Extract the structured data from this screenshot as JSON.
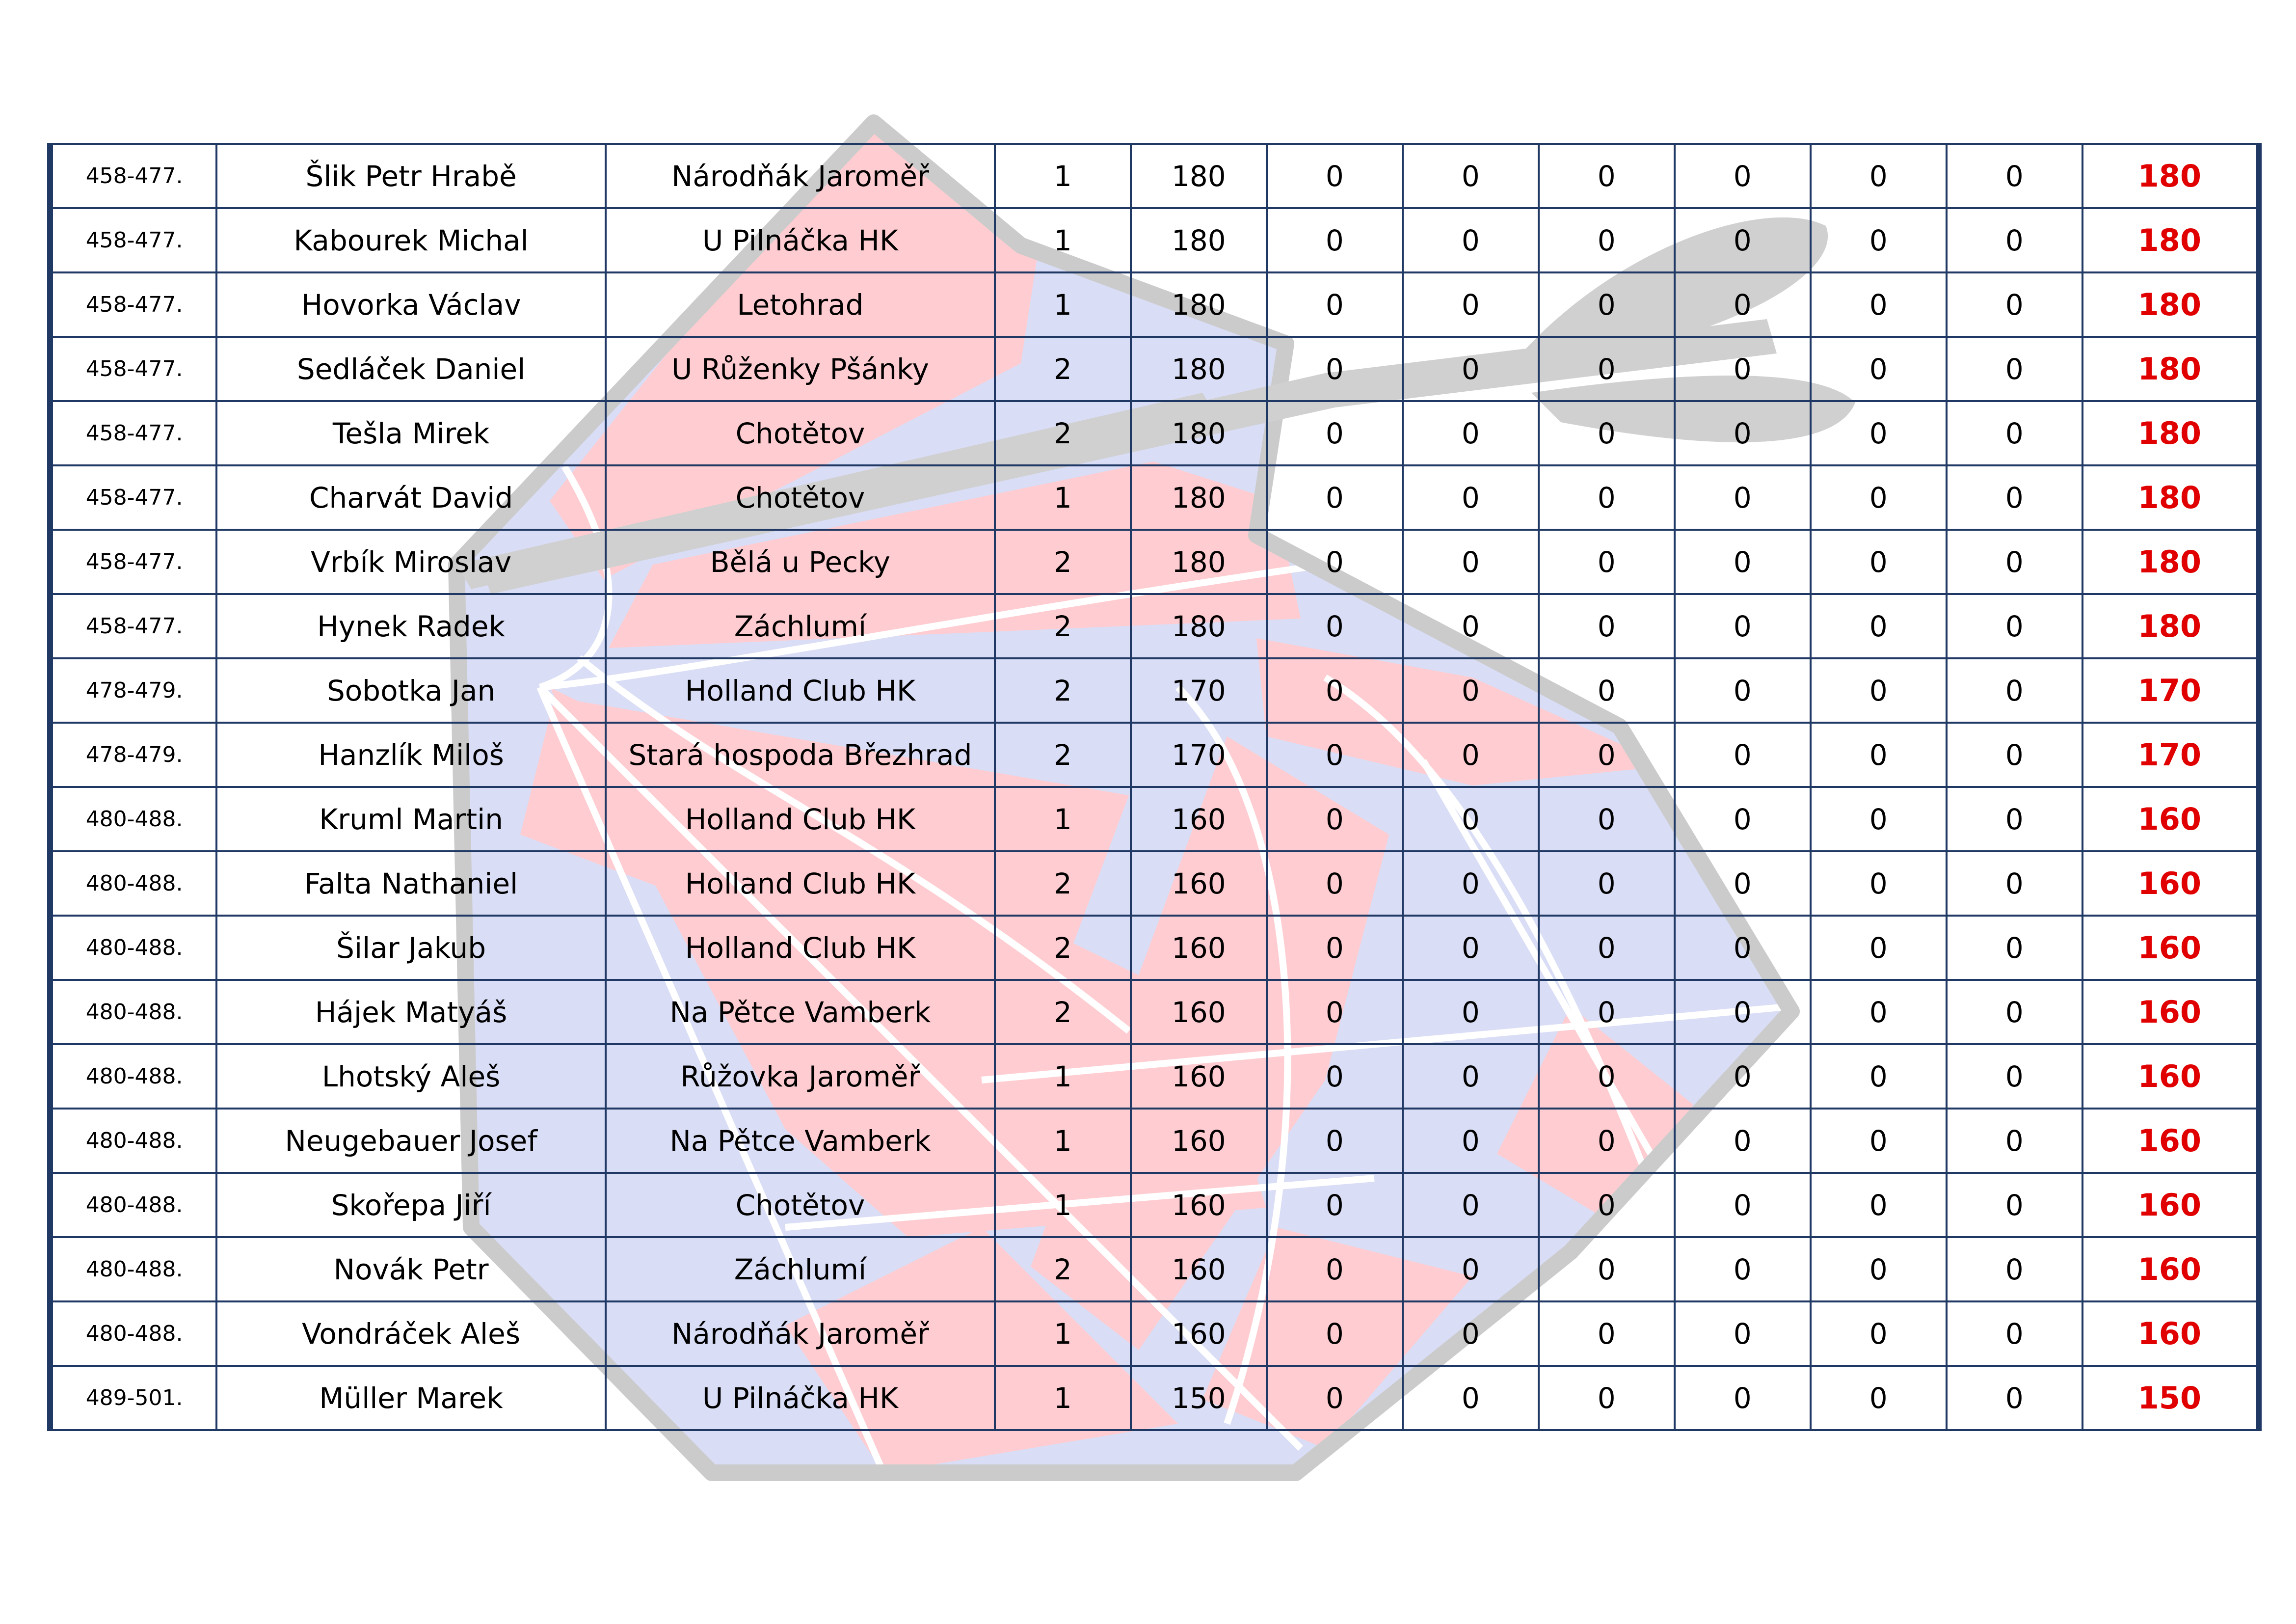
{
  "colors": {
    "border": "#1f3864",
    "total_text": "#e00000",
    "watermark_red": "#ffc8cc",
    "watermark_blue": "#d7dcf4",
    "watermark_outline": "#c8c8c8"
  },
  "watermark_icon": "dartboard-with-dart-logo",
  "rows": [
    {
      "rank": "458-477.",
      "name": "Šlik Petr Hrabě",
      "club": "Národňák Jaroměř",
      "c1": "1",
      "c2": "180",
      "c3": "0",
      "c4": "0",
      "c5": "0",
      "c6": "0",
      "c7": "0",
      "c8": "0",
      "total": "180"
    },
    {
      "rank": "458-477.",
      "name": "Kabourek Michal",
      "club": "U Pilnáčka HK",
      "c1": "1",
      "c2": "180",
      "c3": "0",
      "c4": "0",
      "c5": "0",
      "c6": "0",
      "c7": "0",
      "c8": "0",
      "total": "180"
    },
    {
      "rank": "458-477.",
      "name": "Hovorka Václav",
      "club": "Letohrad",
      "c1": "1",
      "c2": "180",
      "c3": "0",
      "c4": "0",
      "c5": "0",
      "c6": "0",
      "c7": "0",
      "c8": "0",
      "total": "180"
    },
    {
      "rank": "458-477.",
      "name": "Sedláček Daniel",
      "club": "U Růženky Pšánky",
      "c1": "2",
      "c2": "180",
      "c3": "0",
      "c4": "0",
      "c5": "0",
      "c6": "0",
      "c7": "0",
      "c8": "0",
      "total": "180"
    },
    {
      "rank": "458-477.",
      "name": "Tešla Mirek",
      "club": "Chotětov",
      "c1": "2",
      "c2": "180",
      "c3": "0",
      "c4": "0",
      "c5": "0",
      "c6": "0",
      "c7": "0",
      "c8": "0",
      "total": "180"
    },
    {
      "rank": "458-477.",
      "name": "Charvát David",
      "club": "Chotětov",
      "c1": "1",
      "c2": "180",
      "c3": "0",
      "c4": "0",
      "c5": "0",
      "c6": "0",
      "c7": "0",
      "c8": "0",
      "total": "180"
    },
    {
      "rank": "458-477.",
      "name": "Vrbík Miroslav",
      "club": "Bělá u Pecky",
      "c1": "2",
      "c2": "180",
      "c3": "0",
      "c4": "0",
      "c5": "0",
      "c6": "0",
      "c7": "0",
      "c8": "0",
      "total": "180"
    },
    {
      "rank": "458-477.",
      "name": "Hynek Radek",
      "club": "Záchlumí",
      "c1": "2",
      "c2": "180",
      "c3": "0",
      "c4": "0",
      "c5": "0",
      "c6": "0",
      "c7": "0",
      "c8": "0",
      "total": "180"
    },
    {
      "rank": "478-479.",
      "name": "Sobotka Jan",
      "club": "Holland Club HK",
      "c1": "2",
      "c2": "170",
      "c3": "0",
      "c4": "0",
      "c5": "0",
      "c6": "0",
      "c7": "0",
      "c8": "0",
      "total": "170"
    },
    {
      "rank": "478-479.",
      "name": "Hanzlík Miloš",
      "club": "Stará hospoda Březhrad",
      "c1": "2",
      "c2": "170",
      "c3": "0",
      "c4": "0",
      "c5": "0",
      "c6": "0",
      "c7": "0",
      "c8": "0",
      "total": "170"
    },
    {
      "rank": "480-488.",
      "name": "Kruml Martin",
      "club": "Holland Club HK",
      "c1": "1",
      "c2": "160",
      "c3": "0",
      "c4": "0",
      "c5": "0",
      "c6": "0",
      "c7": "0",
      "c8": "0",
      "total": "160"
    },
    {
      "rank": "480-488.",
      "name": "Falta Nathaniel",
      "club": "Holland Club HK",
      "c1": "2",
      "c2": "160",
      "c3": "0",
      "c4": "0",
      "c5": "0",
      "c6": "0",
      "c7": "0",
      "c8": "0",
      "total": "160"
    },
    {
      "rank": "480-488.",
      "name": "Šilar Jakub",
      "club": "Holland Club HK",
      "c1": "2",
      "c2": "160",
      "c3": "0",
      "c4": "0",
      "c5": "0",
      "c6": "0",
      "c7": "0",
      "c8": "0",
      "total": "160"
    },
    {
      "rank": "480-488.",
      "name": "Hájek Matyáš",
      "club": "Na Pětce Vamberk",
      "c1": "2",
      "c2": "160",
      "c3": "0",
      "c4": "0",
      "c5": "0",
      "c6": "0",
      "c7": "0",
      "c8": "0",
      "total": "160"
    },
    {
      "rank": "480-488.",
      "name": "Lhotský Aleš",
      "club": "Růžovka Jaroměř",
      "c1": "1",
      "c2": "160",
      "c3": "0",
      "c4": "0",
      "c5": "0",
      "c6": "0",
      "c7": "0",
      "c8": "0",
      "total": "160"
    },
    {
      "rank": "480-488.",
      "name": "Neugebauer Josef",
      "club": "Na Pětce Vamberk",
      "c1": "1",
      "c2": "160",
      "c3": "0",
      "c4": "0",
      "c5": "0",
      "c6": "0",
      "c7": "0",
      "c8": "0",
      "total": "160"
    },
    {
      "rank": "480-488.",
      "name": "Skořepa Jiří",
      "club": "Chotětov",
      "c1": "1",
      "c2": "160",
      "c3": "0",
      "c4": "0",
      "c5": "0",
      "c6": "0",
      "c7": "0",
      "c8": "0",
      "total": "160"
    },
    {
      "rank": "480-488.",
      "name": "Novák Petr",
      "club": "Záchlumí",
      "c1": "2",
      "c2": "160",
      "c3": "0",
      "c4": "0",
      "c5": "0",
      "c6": "0",
      "c7": "0",
      "c8": "0",
      "total": "160"
    },
    {
      "rank": "480-488.",
      "name": "Vondráček Aleš",
      "club": "Národňák Jaroměř",
      "c1": "1",
      "c2": "160",
      "c3": "0",
      "c4": "0",
      "c5": "0",
      "c6": "0",
      "c7": "0",
      "c8": "0",
      "total": "160"
    },
    {
      "rank": "489-501.",
      "name": "Müller Marek",
      "club": "U Pilnáčka HK",
      "c1": "1",
      "c2": "150",
      "c3": "0",
      "c4": "0",
      "c5": "0",
      "c6": "0",
      "c7": "0",
      "c8": "0",
      "total": "150"
    }
  ]
}
